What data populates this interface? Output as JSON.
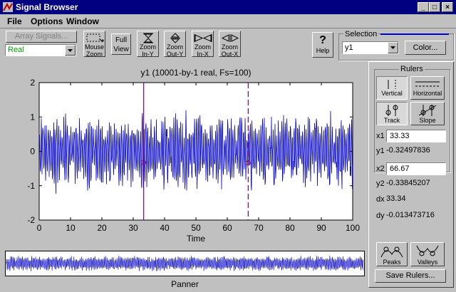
{
  "window": {
    "title": "Signal Browser",
    "buttons": [
      "_",
      "□",
      "×"
    ]
  },
  "menu": [
    "File",
    "Options",
    "Window"
  ],
  "toolbar": {
    "array_signals": "Array Signals...",
    "signal_type": "Real",
    "mouse_zoom": [
      "Mouse",
      "Zoom"
    ],
    "full_view": [
      "Full",
      "View"
    ],
    "zoom_in_y": [
      "Zoom",
      "In-Y"
    ],
    "zoom_out_y": [
      "Zoom",
      "Out-Y"
    ],
    "zoom_in_x": [
      "Zoom",
      "In-X"
    ],
    "zoom_out_x": [
      "Zoom",
      "Out-X"
    ],
    "help_glyph": "?",
    "help": "Help"
  },
  "selection": {
    "title": "Selection",
    "signal": "y1",
    "color_button": "Color..."
  },
  "plot": {
    "title": "y1 (10001-by-1 real, Fs=100)",
    "xlabel": "Time",
    "xticks": [
      "0",
      "10",
      "20",
      "30",
      "40",
      "50",
      "60",
      "70",
      "80",
      "90",
      "100"
    ],
    "yticks": [
      "2",
      "1",
      "0",
      "-1",
      "-2"
    ]
  },
  "panner": {
    "label": "Panner"
  },
  "rulers": {
    "title": "Rulers",
    "vertical": "Vertical",
    "horizontal": "Horizontal",
    "track": "Track",
    "slope": "Slope",
    "x1_label": "x1",
    "x1": "33.33",
    "y1_label": "y1",
    "y1": "-0.32497836",
    "x2_label": "x2",
    "x2": "66.67",
    "y2_label": "y2",
    "y2": "-0.33845207",
    "dx_label": "dx",
    "dx": "33.34",
    "dy_label": "dy",
    "dy": "-0.013473716",
    "peaks": "Peaks",
    "valleys": "Valleys",
    "save": "Save Rulers..."
  },
  "colors": {
    "signal": "#0000c8",
    "ruler": "#800080",
    "selection_line": "#0000c8"
  },
  "chart_data": {
    "type": "line",
    "title": "y1 (10001-by-1 real, Fs=100)",
    "xlabel": "Time",
    "ylabel": "",
    "xlim": [
      0,
      100
    ],
    "ylim": [
      -2,
      2
    ],
    "xticks": [
      0,
      10,
      20,
      30,
      40,
      50,
      60,
      70,
      80,
      90,
      100
    ],
    "yticks": [
      -2,
      -1,
      0,
      1,
      2
    ],
    "series": [
      {
        "values": []
      }
    ],
    "rulers": {
      "x1": 33.33,
      "x2": 66.67,
      "y1": -0.32497836,
      "y2": -0.33845207
    }
  }
}
